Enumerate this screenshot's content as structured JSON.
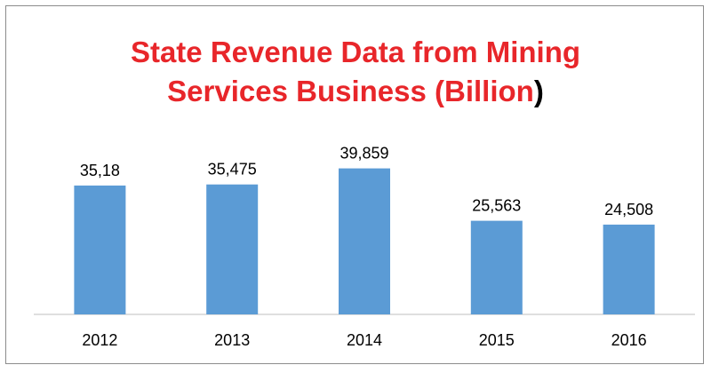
{
  "chart_data": {
    "type": "bar",
    "title_line1": "State Revenue Data from Mining",
    "title_line2_red": "Services Business (Billion",
    "title_line2_black": ")",
    "categories": [
      "2012",
      "2013",
      "2014",
      "2015",
      "2016"
    ],
    "values": [
      35.18,
      35.475,
      39.859,
      25.563,
      24.508
    ],
    "data_labels": [
      "35,18",
      "35,475",
      "39,859",
      "25,563",
      "24,508"
    ],
    "xlabel": "",
    "ylabel": "",
    "ylim": [
      0,
      45
    ],
    "grid": false,
    "legend": "none",
    "colors": {
      "bar": "#5b9bd5",
      "title": "#e8262a",
      "axis": "#bfbfbf",
      "text": "#000000"
    }
  }
}
